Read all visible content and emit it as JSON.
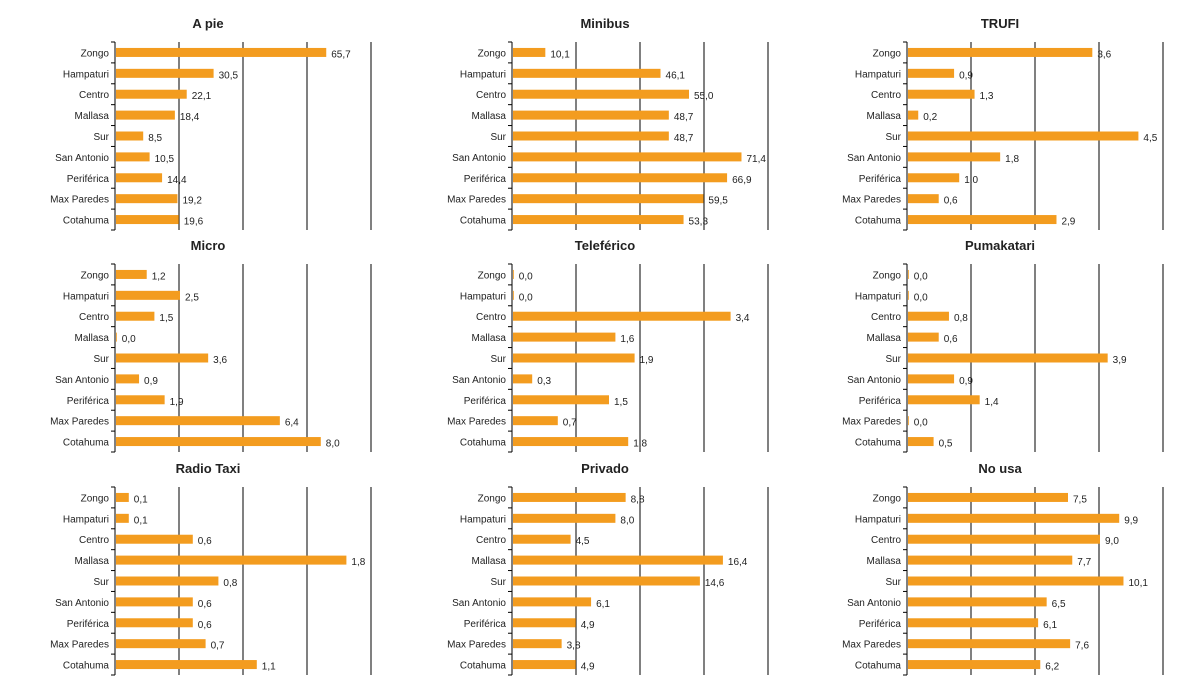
{
  "chart_data": [
    {
      "type": "bar",
      "orientation": "horizontal",
      "title": "A pie",
      "categories": [
        "Zongo",
        "Hampaturi",
        "Centro",
        "Mallasa",
        "Sur",
        "San Antonio",
        "Periférica",
        "Max Paredes",
        "Cotahuma"
      ],
      "values": [
        65.7,
        30.5,
        22.1,
        18.4,
        8.5,
        10.5,
        14.4,
        19.2,
        19.6
      ],
      "labels": [
        "65,7",
        "30,5",
        "22,1",
        "18,4",
        "8,5",
        "10,5",
        "14,4",
        "19,2",
        "19,6"
      ],
      "xlim": [
        0,
        80
      ],
      "grid": true,
      "bar_color": "#f39c1f"
    },
    {
      "type": "bar",
      "orientation": "horizontal",
      "title": "Minibus",
      "categories": [
        "Zongo",
        "Hampaturi",
        "Centro",
        "Mallasa",
        "Sur",
        "San Antonio",
        "Periférica",
        "Max Paredes",
        "Cotahuma"
      ],
      "values": [
        10.1,
        46.1,
        55.0,
        48.7,
        48.7,
        71.4,
        66.9,
        59.5,
        53.3
      ],
      "labels": [
        "10,1",
        "46,1",
        "55,0",
        "48,7",
        "48,7",
        "71,4",
        "66,9",
        "59,5",
        "53,3"
      ],
      "xlim": [
        0,
        80
      ],
      "grid": true,
      "bar_color": "#f39c1f"
    },
    {
      "type": "bar",
      "orientation": "horizontal",
      "title": "TRUFI",
      "categories": [
        "Zongo",
        "Hampaturi",
        "Centro",
        "Mallasa",
        "Sur",
        "San Antonio",
        "Periférica",
        "Max Paredes",
        "Cotahuma"
      ],
      "values": [
        3.6,
        0.9,
        1.3,
        0.2,
        4.5,
        1.8,
        1.0,
        0.6,
        2.9
      ],
      "labels": [
        "3,6",
        "0,9",
        "1,3",
        "0,2",
        "4,5",
        "1,8",
        "1,0",
        "0,6",
        "2,9"
      ],
      "xlim": [
        0,
        5
      ],
      "grid": true,
      "bar_color": "#f39c1f"
    },
    {
      "type": "bar",
      "orientation": "horizontal",
      "title": "Micro",
      "categories": [
        "Zongo",
        "Hampaturi",
        "Centro",
        "Mallasa",
        "Sur",
        "San Antonio",
        "Periférica",
        "Max Paredes",
        "Cotahuma"
      ],
      "values": [
        1.2,
        2.5,
        1.5,
        0.0,
        3.6,
        0.9,
        1.9,
        6.4,
        8.0
      ],
      "labels": [
        "1,2",
        "2,5",
        "1,5",
        "0,0",
        "3,6",
        "0,9",
        "1,9",
        "6,4",
        "8,0"
      ],
      "xlim": [
        0,
        10
      ],
      "grid": true,
      "bar_color": "#f39c1f"
    },
    {
      "type": "bar",
      "orientation": "horizontal",
      "title": "Teleférico",
      "categories": [
        "Zongo",
        "Hampaturi",
        "Centro",
        "Mallasa",
        "Sur",
        "San Antonio",
        "Periférica",
        "Max Paredes",
        "Cotahuma"
      ],
      "values": [
        0.0,
        0.0,
        3.4,
        1.6,
        1.9,
        0.3,
        1.5,
        0.7,
        1.8
      ],
      "labels": [
        "0,0",
        "0,0",
        "3,4",
        "1,6",
        "1,9",
        "0,3",
        "1,5",
        "0,7",
        "1,8"
      ],
      "xlim": [
        0,
        4
      ],
      "grid": true,
      "bar_color": "#f39c1f"
    },
    {
      "type": "bar",
      "orientation": "horizontal",
      "title": "Pumakatari",
      "categories": [
        "Zongo",
        "Hampaturi",
        "Centro",
        "Mallasa",
        "Sur",
        "San Antonio",
        "Periférica",
        "Max Paredes",
        "Cotahuma"
      ],
      "values": [
        0.0,
        0.0,
        0.8,
        0.6,
        3.9,
        0.9,
        1.4,
        0.0,
        0.5
      ],
      "labels": [
        "0,0",
        "0,0",
        "0,8",
        "0,6",
        "3,9",
        "0,9",
        "1,4",
        "0,0",
        "0,5"
      ],
      "xlim": [
        0,
        5
      ],
      "grid": true,
      "bar_color": "#f39c1f"
    },
    {
      "type": "bar",
      "orientation": "horizontal",
      "title": "Radio Taxi",
      "categories": [
        "Zongo",
        "Hampaturi",
        "Centro",
        "Mallasa",
        "Sur",
        "San Antonio",
        "Periférica",
        "Max Paredes",
        "Cotahuma"
      ],
      "values": [
        0.1,
        0.1,
        0.6,
        1.8,
        0.8,
        0.6,
        0.6,
        0.7,
        1.1
      ],
      "labels": [
        "0,1",
        "0,1",
        "0,6",
        "1,8",
        "0,8",
        "0,6",
        "0,6",
        "0,7",
        "1,1"
      ],
      "xlim": [
        0,
        2
      ],
      "grid": true,
      "bar_color": "#f39c1f"
    },
    {
      "type": "bar",
      "orientation": "horizontal",
      "title": "Privado",
      "categories": [
        "Zongo",
        "Hampaturi",
        "Centro",
        "Mallasa",
        "Sur",
        "San Antonio",
        "Periférica",
        "Max Paredes",
        "Cotahuma"
      ],
      "values": [
        8.8,
        8.0,
        4.5,
        16.4,
        14.6,
        6.1,
        4.9,
        3.8,
        4.9
      ],
      "labels": [
        "8,8",
        "8,0",
        "4,5",
        "16,4",
        "14,6",
        "6,1",
        "4,9",
        "3,8",
        "4,9"
      ],
      "xlim": [
        0,
        20
      ],
      "grid": true,
      "bar_color": "#f39c1f"
    },
    {
      "type": "bar",
      "orientation": "horizontal",
      "title": "No usa",
      "categories": [
        "Zongo",
        "Hampaturi",
        "Centro",
        "Mallasa",
        "Sur",
        "San Antonio",
        "Periférica",
        "Max Paredes",
        "Cotahuma"
      ],
      "values": [
        7.5,
        9.9,
        9.0,
        7.7,
        10.1,
        6.5,
        6.1,
        7.6,
        6.2
      ],
      "labels": [
        "7,5",
        "9,9",
        "9,0",
        "7,7",
        "10,1",
        "6,5",
        "6,1",
        "7,6",
        "6,2"
      ],
      "xlim": [
        0,
        12
      ],
      "grid": true,
      "bar_color": "#f39c1f"
    }
  ]
}
